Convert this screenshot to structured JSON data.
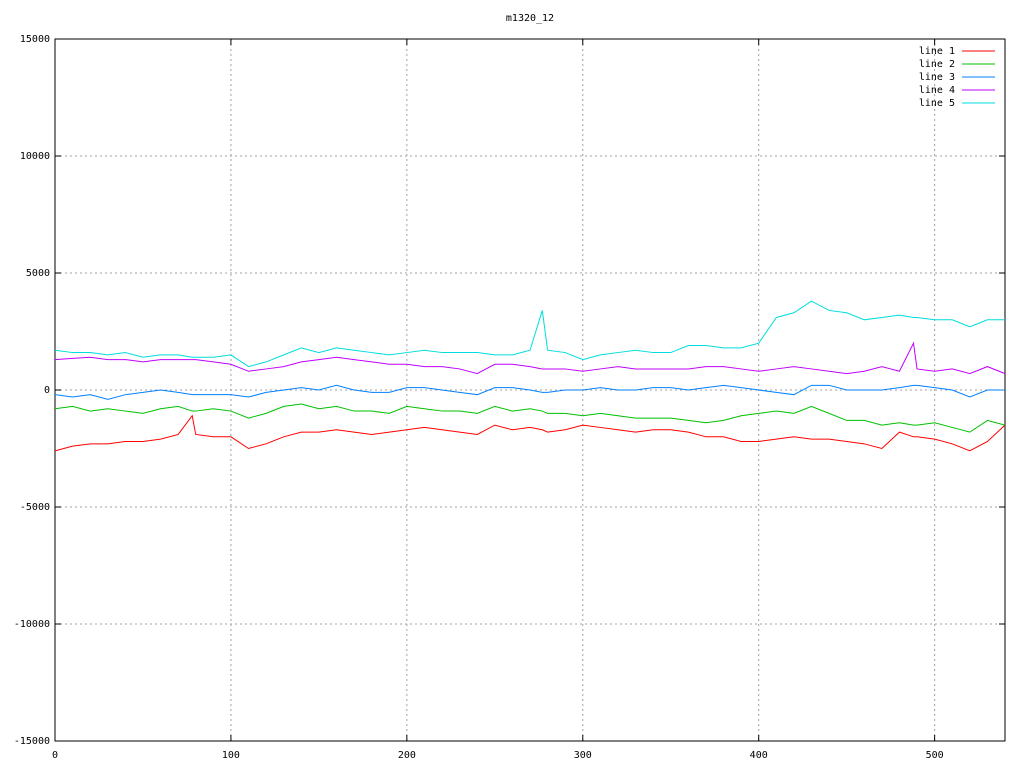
{
  "chart_data": {
    "type": "line",
    "title": "m1320_12",
    "x": [
      0,
      10,
      20,
      30,
      40,
      50,
      60,
      70,
      78,
      80,
      90,
      100,
      110,
      120,
      130,
      140,
      150,
      160,
      170,
      180,
      190,
      200,
      210,
      220,
      230,
      240,
      250,
      260,
      270,
      277,
      280,
      290,
      300,
      310,
      320,
      330,
      340,
      350,
      360,
      370,
      380,
      390,
      400,
      410,
      420,
      430,
      440,
      450,
      460,
      470,
      480,
      488,
      490,
      500,
      510,
      520,
      530,
      540
    ],
    "series": [
      {
        "name": "line 1",
        "color": "#ff0000",
        "values": [
          -2600,
          -2400,
          -2300,
          -2300,
          -2200,
          -2200,
          -2100,
          -1900,
          -1100,
          -1900,
          -2000,
          -2000,
          -2500,
          -2300,
          -2000,
          -1800,
          -1800,
          -1700,
          -1800,
          -1900,
          -1800,
          -1700,
          -1600,
          -1700,
          -1800,
          -1900,
          -1500,
          -1700,
          -1600,
          -1700,
          -1800,
          -1700,
          -1500,
          -1600,
          -1700,
          -1800,
          -1700,
          -1700,
          -1800,
          -2000,
          -2000,
          -2200,
          -2200,
          -2100,
          -2000,
          -2100,
          -2100,
          -2200,
          -2300,
          -2500,
          -1800,
          -2000,
          -2000,
          -2100,
          -2300,
          -2600,
          -2200,
          -1500
        ]
      },
      {
        "name": "line 2",
        "color": "#00c000",
        "values": [
          -800,
          -700,
          -900,
          -800,
          -900,
          -1000,
          -800,
          -700,
          -900,
          -900,
          -800,
          -900,
          -1200,
          -1000,
          -700,
          -600,
          -800,
          -700,
          -900,
          -900,
          -1000,
          -700,
          -800,
          -900,
          -900,
          -1000,
          -700,
          -900,
          -800,
          -900,
          -1000,
          -1000,
          -1100,
          -1000,
          -1100,
          -1200,
          -1200,
          -1200,
          -1300,
          -1400,
          -1300,
          -1100,
          -1000,
          -900,
          -1000,
          -700,
          -1000,
          -1300,
          -1300,
          -1500,
          -1400,
          -1500,
          -1500,
          -1400,
          -1600,
          -1800,
          -1300,
          -1500
        ]
      },
      {
        "name": "line 3",
        "color": "#0080ff",
        "values": [
          -200,
          -300,
          -200,
          -400,
          -200,
          -100,
          0,
          -100,
          -200,
          -200,
          -200,
          -200,
          -300,
          -100,
          0,
          100,
          0,
          200,
          0,
          -100,
          -100,
          100,
          100,
          0,
          -100,
          -200,
          100,
          100,
          0,
          -100,
          -100,
          0,
          0,
          100,
          0,
          0,
          100,
          100,
          0,
          100,
          200,
          100,
          0,
          -100,
          -200,
          200,
          200,
          0,
          0,
          0,
          100,
          200,
          200,
          100,
          0,
          -300,
          0,
          0
        ]
      },
      {
        "name": "line 4",
        "color": "#c000ff",
        "values": [
          1300,
          1350,
          1400,
          1300,
          1300,
          1200,
          1300,
          1300,
          1300,
          1300,
          1200,
          1100,
          800,
          900,
          1000,
          1200,
          1300,
          1400,
          1300,
          1200,
          1100,
          1100,
          1000,
          1000,
          900,
          700,
          1100,
          1100,
          1000,
          900,
          900,
          900,
          800,
          900,
          1000,
          900,
          900,
          900,
          900,
          1000,
          1000,
          900,
          800,
          900,
          1000,
          900,
          800,
          700,
          800,
          1000,
          800,
          2000,
          900,
          800,
          900,
          700,
          1000,
          700
        ]
      },
      {
        "name": "line 5",
        "color": "#00dddd",
        "values": [
          1700,
          1600,
          1600,
          1500,
          1600,
          1400,
          1500,
          1500,
          1400,
          1400,
          1400,
          1500,
          1000,
          1200,
          1500,
          1800,
          1600,
          1800,
          1700,
          1600,
          1500,
          1600,
          1700,
          1600,
          1600,
          1600,
          1500,
          1500,
          1700,
          3400,
          1700,
          1600,
          1300,
          1500,
          1600,
          1700,
          1600,
          1600,
          1900,
          1900,
          1800,
          1800,
          2000,
          3100,
          3300,
          3800,
          3400,
          3300,
          3000,
          3100,
          3200,
          3100,
          3100,
          3000,
          3000,
          2700,
          3000,
          3000
        ]
      }
    ],
    "xlim": [
      0,
      540
    ],
    "xticks": [
      0,
      100,
      200,
      300,
      400,
      500
    ],
    "ylim": [
      -15000,
      15000
    ],
    "yticks": [
      -15000,
      -10000,
      -5000,
      0,
      5000,
      10000,
      15000
    ],
    "grid": true,
    "legend": "top-right"
  }
}
